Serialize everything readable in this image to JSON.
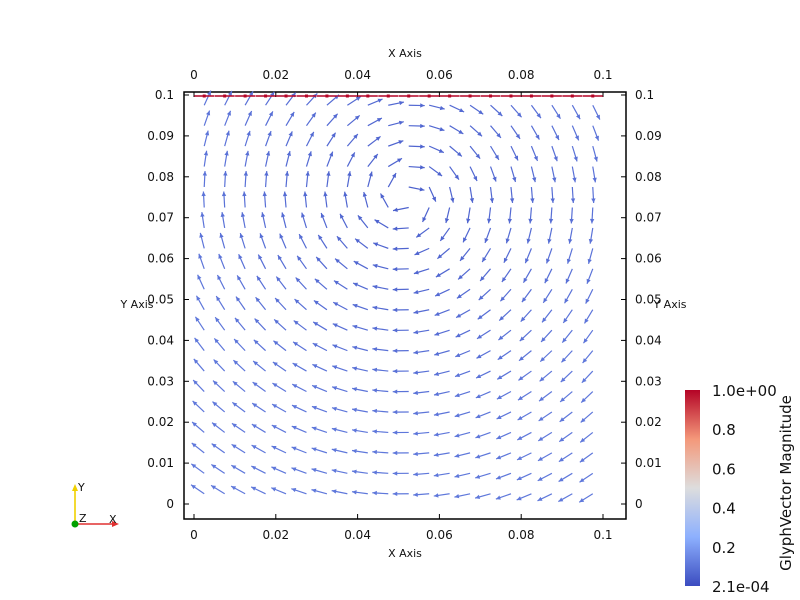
{
  "chart_data": {
    "type": "vector-field",
    "x_axis": {
      "label": "X Axis",
      "range": [
        0,
        0.1
      ],
      "ticks": [
        "0",
        "0.02",
        "0.04",
        "0.06",
        "0.08",
        "0.1"
      ],
      "tick_values": [
        0,
        0.02,
        0.04,
        0.06,
        0.08,
        0.1
      ]
    },
    "y_axis": {
      "label": "Y Axis",
      "range": [
        0,
        0.1
      ],
      "ticks": [
        "0",
        "0.01",
        "0.02",
        "0.03",
        "0.04",
        "0.05",
        "0.06",
        "0.07",
        "0.08",
        "0.09",
        "0.1"
      ],
      "tick_values": [
        0,
        0.01,
        0.02,
        0.03,
        0.04,
        0.05,
        0.06,
        0.07,
        0.08,
        0.09,
        0.1
      ]
    },
    "vortex_center": [
      0.052,
      0.075
    ],
    "lid_velocity": 1.0,
    "grid_samples": 20,
    "colorbar": {
      "title": "GlyphVector Magnitude",
      "min_label": "2.1e-04",
      "max_label": "1.0e+00",
      "labels": [
        "0.2",
        "0.4",
        "0.6",
        "0.8"
      ],
      "label_values": [
        0.2,
        0.4,
        0.6,
        0.8
      ],
      "min": 0.00021,
      "max": 1.0,
      "colors": [
        "#3b4cc0",
        "#8db0fe",
        "#dddddd",
        "#f4987a",
        "#b40426"
      ]
    },
    "orientation_triad": {
      "x_label": "X",
      "y_label": "Y",
      "z_label": "Z",
      "x_color": "#e03030",
      "y_color": "#f0d000",
      "z_color": "#00a000"
    }
  }
}
